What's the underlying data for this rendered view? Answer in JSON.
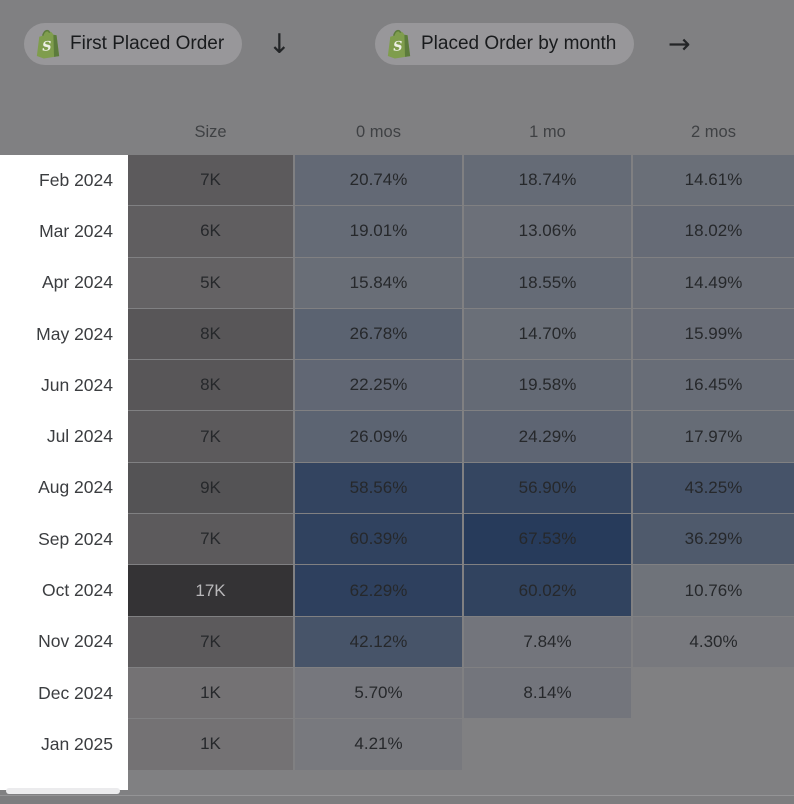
{
  "toolbar": {
    "pills": [
      {
        "label": "First Placed Order",
        "arrow": "↓"
      },
      {
        "label": "Placed Order by month",
        "arrow": "→"
      }
    ]
  },
  "table": {
    "column_headers": [
      "Size",
      "0 mos",
      "1 mo",
      "2 mos"
    ],
    "rows": [
      {
        "cohort": "Feb 2024",
        "size": "7K",
        "values": [
          "20.74%",
          "18.74%",
          "14.61%"
        ]
      },
      {
        "cohort": "Mar 2024",
        "size": "6K",
        "values": [
          "19.01%",
          "13.06%",
          "18.02%"
        ]
      },
      {
        "cohort": "Apr 2024",
        "size": "5K",
        "values": [
          "15.84%",
          "18.55%",
          "14.49%"
        ]
      },
      {
        "cohort": "May 2024",
        "size": "8K",
        "values": [
          "26.78%",
          "14.70%",
          "15.99%"
        ]
      },
      {
        "cohort": "Jun 2024",
        "size": "8K",
        "values": [
          "22.25%",
          "19.58%",
          "16.45%"
        ]
      },
      {
        "cohort": "Jul 2024",
        "size": "7K",
        "values": [
          "26.09%",
          "24.29%",
          "17.97%"
        ]
      },
      {
        "cohort": "Aug 2024",
        "size": "9K",
        "values": [
          "58.56%",
          "56.90%",
          "43.25%"
        ]
      },
      {
        "cohort": "Sep 2024",
        "size": "7K",
        "values": [
          "60.39%",
          "67.53%",
          "36.29%"
        ]
      },
      {
        "cohort": "Oct 2024",
        "size": "17K",
        "values": [
          "62.29%",
          "60.02%",
          "10.76%"
        ]
      },
      {
        "cohort": "Nov 2024",
        "size": "7K",
        "values": [
          "42.12%",
          "7.84%",
          "4.30%"
        ]
      },
      {
        "cohort": "Dec 2024",
        "size": "1K",
        "values": [
          "5.70%",
          "8.14%",
          null
        ]
      },
      {
        "cohort": "Jan 2025",
        "size": "1K",
        "values": [
          "4.21%",
          null,
          null
        ]
      }
    ]
  },
  "colors": {
    "page_bg": "#808082",
    "pill_bg": "#98979a",
    "heat_low": "#7d7d80",
    "heat_high": "#24395a",
    "heat_max_pct": 70,
    "size_low": "#747274",
    "size_high": "#343335",
    "size_light_text": "#b9b8ba",
    "shopify_green": "#7f9d4d",
    "shopify_green_dark": "#5c7b3c"
  },
  "chart_data": {
    "type": "heatmap",
    "title": "",
    "x_categories": [
      "0 mos",
      "1 mo",
      "2 mos"
    ],
    "y_categories": [
      "Feb 2024",
      "Mar 2024",
      "Apr 2024",
      "May 2024",
      "Jun 2024",
      "Jul 2024",
      "Aug 2024",
      "Sep 2024",
      "Oct 2024",
      "Nov 2024",
      "Dec 2024",
      "Jan 2025"
    ],
    "cohort_sizes_k": [
      7,
      6,
      5,
      8,
      8,
      7,
      9,
      7,
      17,
      7,
      1,
      1
    ],
    "values_pct": [
      [
        20.74,
        18.74,
        14.61
      ],
      [
        19.01,
        13.06,
        18.02
      ],
      [
        15.84,
        18.55,
        14.49
      ],
      [
        26.78,
        14.7,
        15.99
      ],
      [
        22.25,
        19.58,
        16.45
      ],
      [
        26.09,
        24.29,
        17.97
      ],
      [
        58.56,
        56.9,
        43.25
      ],
      [
        60.39,
        67.53,
        36.29
      ],
      [
        62.29,
        60.02,
        10.76
      ],
      [
        42.12,
        7.84,
        4.3
      ],
      [
        5.7,
        8.14,
        null
      ],
      [
        4.21,
        null,
        null
      ]
    ]
  }
}
